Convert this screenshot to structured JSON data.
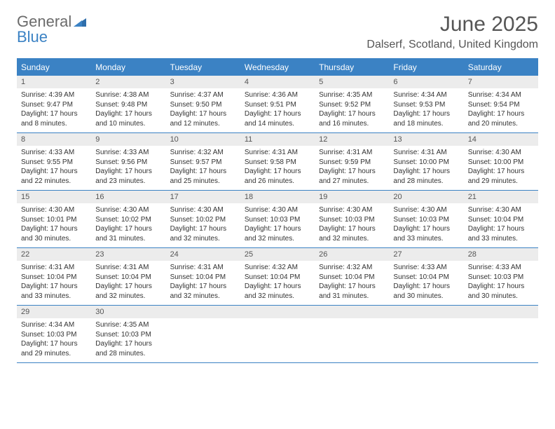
{
  "logo": {
    "text1": "General",
    "text2": "Blue"
  },
  "title": "June 2025",
  "location": "Dalserf, Scotland, United Kingdom",
  "colors": {
    "accent": "#3b82c4",
    "header_text": "#ffffff",
    "daynum_bg": "#ececec",
    "body_text": "#333333",
    "title_text": "#555555"
  },
  "weekdays": [
    "Sunday",
    "Monday",
    "Tuesday",
    "Wednesday",
    "Thursday",
    "Friday",
    "Saturday"
  ],
  "weeks": [
    [
      {
        "n": "1",
        "sr": "Sunrise: 4:39 AM",
        "ss": "Sunset: 9:47 PM",
        "d1": "Daylight: 17 hours",
        "d2": "and 8 minutes."
      },
      {
        "n": "2",
        "sr": "Sunrise: 4:38 AM",
        "ss": "Sunset: 9:48 PM",
        "d1": "Daylight: 17 hours",
        "d2": "and 10 minutes."
      },
      {
        "n": "3",
        "sr": "Sunrise: 4:37 AM",
        "ss": "Sunset: 9:50 PM",
        "d1": "Daylight: 17 hours",
        "d2": "and 12 minutes."
      },
      {
        "n": "4",
        "sr": "Sunrise: 4:36 AM",
        "ss": "Sunset: 9:51 PM",
        "d1": "Daylight: 17 hours",
        "d2": "and 14 minutes."
      },
      {
        "n": "5",
        "sr": "Sunrise: 4:35 AM",
        "ss": "Sunset: 9:52 PM",
        "d1": "Daylight: 17 hours",
        "d2": "and 16 minutes."
      },
      {
        "n": "6",
        "sr": "Sunrise: 4:34 AM",
        "ss": "Sunset: 9:53 PM",
        "d1": "Daylight: 17 hours",
        "d2": "and 18 minutes."
      },
      {
        "n": "7",
        "sr": "Sunrise: 4:34 AM",
        "ss": "Sunset: 9:54 PM",
        "d1": "Daylight: 17 hours",
        "d2": "and 20 minutes."
      }
    ],
    [
      {
        "n": "8",
        "sr": "Sunrise: 4:33 AM",
        "ss": "Sunset: 9:55 PM",
        "d1": "Daylight: 17 hours",
        "d2": "and 22 minutes."
      },
      {
        "n": "9",
        "sr": "Sunrise: 4:33 AM",
        "ss": "Sunset: 9:56 PM",
        "d1": "Daylight: 17 hours",
        "d2": "and 23 minutes."
      },
      {
        "n": "10",
        "sr": "Sunrise: 4:32 AM",
        "ss": "Sunset: 9:57 PM",
        "d1": "Daylight: 17 hours",
        "d2": "and 25 minutes."
      },
      {
        "n": "11",
        "sr": "Sunrise: 4:31 AM",
        "ss": "Sunset: 9:58 PM",
        "d1": "Daylight: 17 hours",
        "d2": "and 26 minutes."
      },
      {
        "n": "12",
        "sr": "Sunrise: 4:31 AM",
        "ss": "Sunset: 9:59 PM",
        "d1": "Daylight: 17 hours",
        "d2": "and 27 minutes."
      },
      {
        "n": "13",
        "sr": "Sunrise: 4:31 AM",
        "ss": "Sunset: 10:00 PM",
        "d1": "Daylight: 17 hours",
        "d2": "and 28 minutes."
      },
      {
        "n": "14",
        "sr": "Sunrise: 4:30 AM",
        "ss": "Sunset: 10:00 PM",
        "d1": "Daylight: 17 hours",
        "d2": "and 29 minutes."
      }
    ],
    [
      {
        "n": "15",
        "sr": "Sunrise: 4:30 AM",
        "ss": "Sunset: 10:01 PM",
        "d1": "Daylight: 17 hours",
        "d2": "and 30 minutes."
      },
      {
        "n": "16",
        "sr": "Sunrise: 4:30 AM",
        "ss": "Sunset: 10:02 PM",
        "d1": "Daylight: 17 hours",
        "d2": "and 31 minutes."
      },
      {
        "n": "17",
        "sr": "Sunrise: 4:30 AM",
        "ss": "Sunset: 10:02 PM",
        "d1": "Daylight: 17 hours",
        "d2": "and 32 minutes."
      },
      {
        "n": "18",
        "sr": "Sunrise: 4:30 AM",
        "ss": "Sunset: 10:03 PM",
        "d1": "Daylight: 17 hours",
        "d2": "and 32 minutes."
      },
      {
        "n": "19",
        "sr": "Sunrise: 4:30 AM",
        "ss": "Sunset: 10:03 PM",
        "d1": "Daylight: 17 hours",
        "d2": "and 32 minutes."
      },
      {
        "n": "20",
        "sr": "Sunrise: 4:30 AM",
        "ss": "Sunset: 10:03 PM",
        "d1": "Daylight: 17 hours",
        "d2": "and 33 minutes."
      },
      {
        "n": "21",
        "sr": "Sunrise: 4:30 AM",
        "ss": "Sunset: 10:04 PM",
        "d1": "Daylight: 17 hours",
        "d2": "and 33 minutes."
      }
    ],
    [
      {
        "n": "22",
        "sr": "Sunrise: 4:31 AM",
        "ss": "Sunset: 10:04 PM",
        "d1": "Daylight: 17 hours",
        "d2": "and 33 minutes."
      },
      {
        "n": "23",
        "sr": "Sunrise: 4:31 AM",
        "ss": "Sunset: 10:04 PM",
        "d1": "Daylight: 17 hours",
        "d2": "and 32 minutes."
      },
      {
        "n": "24",
        "sr": "Sunrise: 4:31 AM",
        "ss": "Sunset: 10:04 PM",
        "d1": "Daylight: 17 hours",
        "d2": "and 32 minutes."
      },
      {
        "n": "25",
        "sr": "Sunrise: 4:32 AM",
        "ss": "Sunset: 10:04 PM",
        "d1": "Daylight: 17 hours",
        "d2": "and 32 minutes."
      },
      {
        "n": "26",
        "sr": "Sunrise: 4:32 AM",
        "ss": "Sunset: 10:04 PM",
        "d1": "Daylight: 17 hours",
        "d2": "and 31 minutes."
      },
      {
        "n": "27",
        "sr": "Sunrise: 4:33 AM",
        "ss": "Sunset: 10:04 PM",
        "d1": "Daylight: 17 hours",
        "d2": "and 30 minutes."
      },
      {
        "n": "28",
        "sr": "Sunrise: 4:33 AM",
        "ss": "Sunset: 10:03 PM",
        "d1": "Daylight: 17 hours",
        "d2": "and 30 minutes."
      }
    ],
    [
      {
        "n": "29",
        "sr": "Sunrise: 4:34 AM",
        "ss": "Sunset: 10:03 PM",
        "d1": "Daylight: 17 hours",
        "d2": "and 29 minutes."
      },
      {
        "n": "30",
        "sr": "Sunrise: 4:35 AM",
        "ss": "Sunset: 10:03 PM",
        "d1": "Daylight: 17 hours",
        "d2": "and 28 minutes."
      },
      null,
      null,
      null,
      null,
      null
    ]
  ]
}
